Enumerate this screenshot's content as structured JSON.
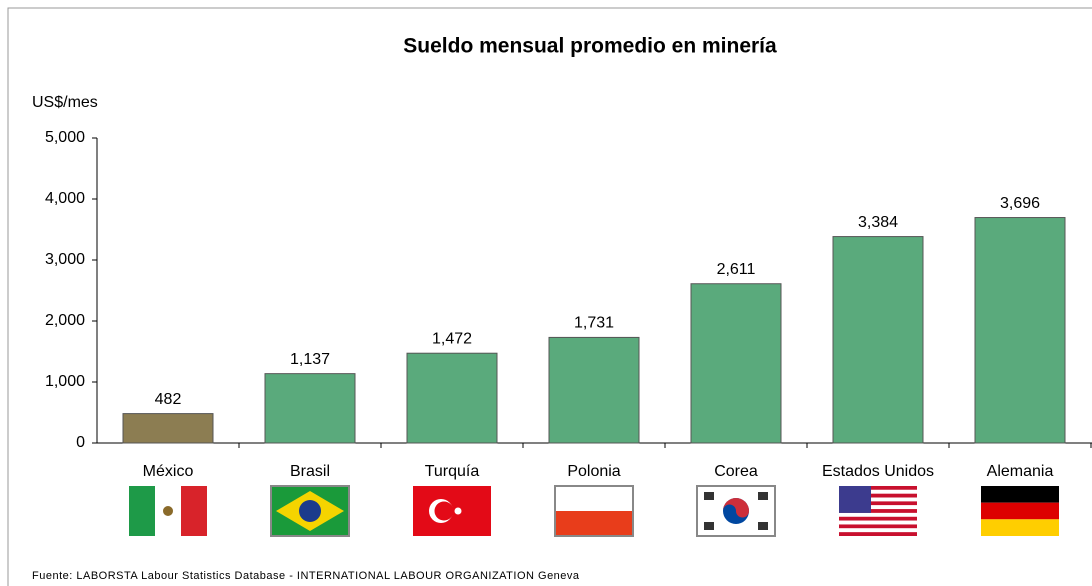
{
  "chart_data": {
    "type": "bar",
    "title": "Sueldo mensual promedio en minería",
    "y_label": "US$/mes",
    "categories": [
      "México",
      "Brasil",
      "Turquía",
      "Polonia",
      "Corea",
      "Estados Unidos",
      "Alemania"
    ],
    "values": [
      482,
      1137,
      1472,
      1731,
      2611,
      3384,
      3696
    ],
    "value_labels": [
      "482",
      "1,137",
      "1,472",
      "1,731",
      "2,611",
      "3,384",
      "3,696"
    ],
    "colors": [
      "#8c7d52",
      "#5aaa7c",
      "#5aaa7c",
      "#5aaa7c",
      "#5aaa7c",
      "#5aaa7c",
      "#5aaa7c"
    ],
    "ylim": [
      0,
      5000
    ],
    "yticks": [
      0,
      {
        "value": 1000,
        "label": "1,000"
      },
      {
        "value": 2000,
        "label": "2,000"
      },
      {
        "value": 3000,
        "label": "3,000"
      },
      {
        "value": 4000,
        "label": "4,000"
      },
      {
        "value": 5000,
        "label": "5,000"
      }
    ],
    "grid": false,
    "source": "Fuente: LABORSTA Labour Statistics Database - INTERNATIONAL LABOUR ORGANIZATION Geneva"
  }
}
